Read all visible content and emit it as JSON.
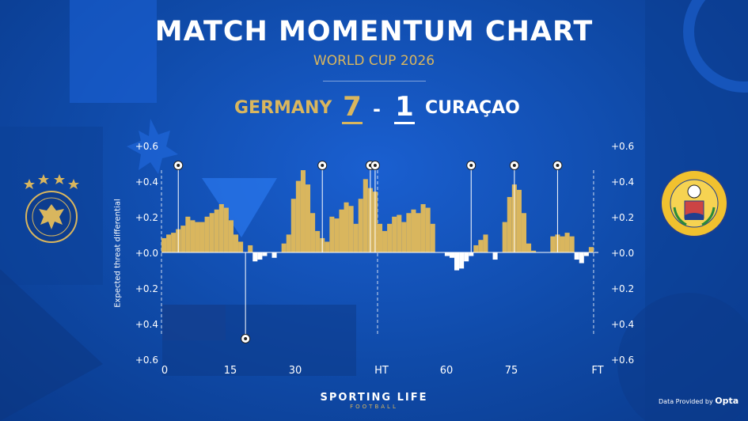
{
  "title": "MATCH MOMENTUM CHART",
  "subtitle": "WORLD CUP 2026",
  "home_team": {
    "name": "GERMANY",
    "score": "7",
    "crest_icon": "germany-crest-icon"
  },
  "away_team": {
    "name": "CURAÇAO",
    "score": "1",
    "crest_icon": "curacao-crest-icon"
  },
  "score_separator": "-",
  "branding": {
    "name": "SPORTING LIFE",
    "sub": "FOOTBALL"
  },
  "provider": {
    "prefix": "Data Provided by",
    "name": "Opta"
  },
  "colors": {
    "home": "#d9b65e",
    "away": "#ffffff",
    "background": "#0f4aa8"
  },
  "chart_data": {
    "type": "bar",
    "ylabel": "Expected threat differential",
    "ylim": [
      -0.6,
      0.6
    ],
    "yticks": [
      "+0.6",
      "+0.4",
      "+0.2",
      "+0.0",
      "+0.2",
      "+0.4",
      "+0.6"
    ],
    "xlim": [
      0,
      91
    ],
    "xticks": [
      {
        "label": "0",
        "value": 0
      },
      {
        "label": "15",
        "value": 15
      },
      {
        "label": "30",
        "value": 30
      },
      {
        "label": "HT",
        "value": 45
      },
      {
        "label": "60",
        "value": 60
      },
      {
        "label": "75",
        "value": 75
      },
      {
        "label": "FT",
        "value": 90
      }
    ],
    "x": [
      1,
      2,
      3,
      4,
      5,
      6,
      7,
      8,
      9,
      10,
      11,
      12,
      13,
      14,
      15,
      16,
      17,
      18,
      19,
      20,
      21,
      22,
      23,
      24,
      25,
      26,
      27,
      28,
      29,
      30,
      31,
      32,
      33,
      34,
      35,
      36,
      37,
      38,
      39,
      40,
      41,
      42,
      43,
      44,
      45,
      46,
      47,
      48,
      49,
      50,
      51,
      52,
      53,
      54,
      55,
      56,
      57,
      58,
      59,
      60,
      61,
      62,
      63,
      64,
      65,
      66,
      67,
      68,
      69,
      70,
      71,
      72,
      73,
      74,
      75,
      76,
      77,
      78,
      79,
      80,
      81,
      82,
      83,
      84,
      85,
      86,
      87,
      88,
      89,
      90
    ],
    "values": [
      0.08,
      0.1,
      0.11,
      0.13,
      0.15,
      0.2,
      0.18,
      0.17,
      0.17,
      0.2,
      0.22,
      0.24,
      0.27,
      0.25,
      0.18,
      0.1,
      0.06,
      0.0,
      0.04,
      -0.05,
      -0.04,
      -0.02,
      0.0,
      -0.03,
      0.0,
      0.05,
      0.1,
      0.3,
      0.4,
      0.46,
      0.38,
      0.22,
      0.12,
      0.08,
      0.06,
      0.2,
      0.19,
      0.24,
      0.28,
      0.26,
      0.16,
      0.3,
      0.41,
      0.36,
      0.34,
      0.16,
      0.12,
      0.16,
      0.2,
      0.21,
      0.17,
      0.22,
      0.24,
      0.22,
      0.27,
      0.25,
      0.16,
      0.0,
      0.0,
      -0.02,
      -0.03,
      -0.1,
      -0.09,
      -0.05,
      -0.02,
      0.04,
      0.07,
      0.1,
      0.0,
      -0.04,
      0.0,
      0.17,
      0.31,
      0.38,
      0.35,
      0.22,
      0.05,
      0.01,
      0.0,
      0.0,
      0.0,
      0.09,
      0.1,
      0.09,
      0.11,
      0.09,
      -0.04,
      -0.06,
      -0.02,
      0.03
    ],
    "goals": [
      {
        "minute": 4,
        "team": "home"
      },
      {
        "minute": 18,
        "team": "away"
      },
      {
        "minute": 34,
        "team": "home"
      },
      {
        "minute": 44,
        "team": "home"
      },
      {
        "minute": 45,
        "team": "home"
      },
      {
        "minute": 65,
        "team": "home"
      },
      {
        "minute": 74,
        "team": "home"
      },
      {
        "minute": 83,
        "team": "home"
      }
    ]
  }
}
